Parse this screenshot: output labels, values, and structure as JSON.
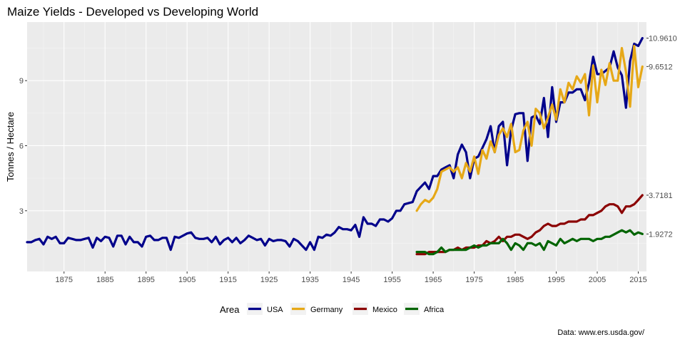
{
  "chart_data": {
    "type": "line",
    "title": "Maize Yields - Developed vs Developing World",
    "xlabel": "",
    "ylabel": "Tonnes / Hectare",
    "caption": "Data: www.ers.usda.gov/",
    "xlim": [
      1866,
      2017
    ],
    "ylim": [
      0.2,
      11.7
    ],
    "x_ticks": [
      "1875",
      "1885",
      "1895",
      "1905",
      "1915",
      "1925",
      "1935",
      "1945",
      "1955",
      "1965",
      "1975",
      "1985",
      "1995",
      "2005",
      "2015"
    ],
    "y_ticks": [
      "3",
      "6",
      "9"
    ],
    "grid": true,
    "legend": {
      "title": "Area",
      "position": "bottom"
    },
    "end_labels": [
      {
        "series": "USA",
        "text": "10.9610",
        "value": 10.961
      },
      {
        "series": "Germany",
        "text": "9.6512",
        "value": 9.6512
      },
      {
        "series": "Mexico",
        "text": "3.7181",
        "value": 3.7181
      },
      {
        "series": "Africa",
        "text": "1.9272",
        "value": 1.9272
      }
    ],
    "series": [
      {
        "name": "USA",
        "color": "#00008b",
        "x": [
          1866,
          1867,
          1868,
          1869,
          1870,
          1871,
          1872,
          1873,
          1874,
          1875,
          1876,
          1877,
          1878,
          1879,
          1880,
          1881,
          1882,
          1883,
          1884,
          1885,
          1886,
          1887,
          1888,
          1889,
          1890,
          1891,
          1892,
          1893,
          1894,
          1895,
          1896,
          1897,
          1898,
          1899,
          1900,
          1901,
          1902,
          1903,
          1904,
          1905,
          1906,
          1907,
          1908,
          1909,
          1910,
          1911,
          1912,
          1913,
          1914,
          1915,
          1916,
          1917,
          1918,
          1919,
          1920,
          1921,
          1922,
          1923,
          1924,
          1925,
          1926,
          1927,
          1928,
          1929,
          1930,
          1931,
          1932,
          1933,
          1934,
          1935,
          1936,
          1937,
          1938,
          1939,
          1940,
          1941,
          1942,
          1943,
          1944,
          1945,
          1946,
          1947,
          1948,
          1949,
          1950,
          1951,
          1952,
          1953,
          1954,
          1955,
          1956,
          1957,
          1958,
          1959,
          1960,
          1961,
          1962,
          1963,
          1964,
          1965,
          1966,
          1967,
          1968,
          1969,
          1970,
          1971,
          1972,
          1973,
          1974,
          1975,
          1976,
          1977,
          1978,
          1979,
          1980,
          1981,
          1982,
          1983,
          1984,
          1985,
          1986,
          1987,
          1988,
          1989,
          1990,
          1991,
          1992,
          1993,
          1994,
          1995,
          1996,
          1997,
          1998,
          1999,
          2000,
          2001,
          2002,
          2003,
          2004,
          2005,
          2006,
          2007,
          2008,
          2009,
          2010,
          2011,
          2012,
          2013,
          2014,
          2015,
          2016
        ],
        "values": [
          1.55,
          1.55,
          1.65,
          1.7,
          1.45,
          1.8,
          1.7,
          1.8,
          1.5,
          1.5,
          1.75,
          1.7,
          1.65,
          1.65,
          1.7,
          1.75,
          1.3,
          1.75,
          1.6,
          1.8,
          1.75,
          1.35,
          1.85,
          1.85,
          1.45,
          1.8,
          1.55,
          1.55,
          1.35,
          1.8,
          1.85,
          1.65,
          1.65,
          1.75,
          1.75,
          1.2,
          1.8,
          1.75,
          1.85,
          1.95,
          2.0,
          1.75,
          1.7,
          1.7,
          1.75,
          1.55,
          1.8,
          1.45,
          1.65,
          1.75,
          1.55,
          1.75,
          1.5,
          1.65,
          1.85,
          1.75,
          1.65,
          1.7,
          1.4,
          1.7,
          1.6,
          1.65,
          1.65,
          1.6,
          1.35,
          1.7,
          1.6,
          1.4,
          1.2,
          1.55,
          1.2,
          1.8,
          1.75,
          1.9,
          1.85,
          2.0,
          2.25,
          2.15,
          2.15,
          2.1,
          2.35,
          1.8,
          2.7,
          2.4,
          2.4,
          2.3,
          2.6,
          2.6,
          2.5,
          2.65,
          3.0,
          3.0,
          3.3,
          3.35,
          3.4,
          3.9,
          4.1,
          4.3,
          4.0,
          4.6,
          4.6,
          4.9,
          5.0,
          5.1,
          4.5,
          5.6,
          6.05,
          5.7,
          4.5,
          5.4,
          5.5,
          5.9,
          6.3,
          6.9,
          5.7,
          6.9,
          7.1,
          5.1,
          6.7,
          7.45,
          7.5,
          7.5,
          5.3,
          7.3,
          7.4,
          7.0,
          8.2,
          6.4,
          8.7,
          7.1,
          8.0,
          8.0,
          8.45,
          8.45,
          8.6,
          8.6,
          8.1,
          8.9,
          10.1,
          9.3,
          9.3,
          9.45,
          9.6,
          10.35,
          9.6,
          9.25,
          7.75,
          9.9,
          10.7,
          10.6,
          10.96
        ]
      },
      {
        "name": "Germany",
        "color": "#e6a817",
        "x": [
          1961,
          1962,
          1963,
          1964,
          1965,
          1966,
          1967,
          1968,
          1969,
          1970,
          1971,
          1972,
          1973,
          1974,
          1975,
          1976,
          1977,
          1978,
          1979,
          1980,
          1981,
          1982,
          1983,
          1984,
          1985,
          1986,
          1987,
          1988,
          1989,
          1990,
          1991,
          1992,
          1993,
          1994,
          1995,
          1996,
          1997,
          1998,
          1999,
          2000,
          2001,
          2002,
          2003,
          2004,
          2005,
          2006,
          2007,
          2008,
          2009,
          2010,
          2011,
          2012,
          2013,
          2014,
          2015,
          2016
        ],
        "values": [
          3.0,
          3.3,
          3.5,
          3.4,
          3.6,
          4.0,
          4.8,
          4.9,
          5.0,
          4.8,
          5.0,
          4.5,
          5.2,
          4.8,
          5.5,
          4.7,
          5.8,
          5.4,
          6.2,
          5.7,
          6.5,
          6.8,
          6.4,
          7.0,
          5.7,
          5.8,
          6.7,
          7.1,
          6.0,
          7.7,
          7.5,
          6.8,
          7.3,
          7.9,
          7.2,
          8.6,
          8.0,
          8.9,
          8.6,
          9.2,
          8.9,
          9.3,
          7.4,
          9.7,
          8.0,
          9.5,
          8.8,
          9.8,
          9.0,
          9.0,
          10.5,
          9.4,
          7.8,
          10.6,
          8.7,
          9.6512
        ]
      },
      {
        "name": "Mexico",
        "color": "#8b0000",
        "x": [
          1961,
          1962,
          1963,
          1964,
          1965,
          1966,
          1967,
          1968,
          1969,
          1970,
          1971,
          1972,
          1973,
          1974,
          1975,
          1976,
          1977,
          1978,
          1979,
          1980,
          1981,
          1982,
          1983,
          1984,
          1985,
          1986,
          1987,
          1988,
          1989,
          1990,
          1991,
          1992,
          1993,
          1994,
          1995,
          1996,
          1997,
          1998,
          1999,
          2000,
          2001,
          2002,
          2003,
          2004,
          2005,
          2006,
          2007,
          2008,
          2009,
          2010,
          2011,
          2012,
          2013,
          2014,
          2015,
          2016
        ],
        "values": [
          1.0,
          1.0,
          1.0,
          1.1,
          1.1,
          1.1,
          1.1,
          1.1,
          1.2,
          1.2,
          1.3,
          1.2,
          1.3,
          1.3,
          1.3,
          1.4,
          1.4,
          1.6,
          1.5,
          1.6,
          1.8,
          1.6,
          1.8,
          1.8,
          1.9,
          1.9,
          1.8,
          1.7,
          1.8,
          2.0,
          2.1,
          2.3,
          2.4,
          2.3,
          2.3,
          2.4,
          2.4,
          2.5,
          2.5,
          2.5,
          2.6,
          2.6,
          2.8,
          2.8,
          2.9,
          3.0,
          3.2,
          3.3,
          3.3,
          3.2,
          2.9,
          3.2,
          3.2,
          3.3,
          3.5,
          3.7181
        ]
      },
      {
        "name": "Africa",
        "color": "#006400",
        "x": [
          1961,
          1962,
          1963,
          1964,
          1965,
          1966,
          1967,
          1968,
          1969,
          1970,
          1971,
          1972,
          1973,
          1974,
          1975,
          1976,
          1977,
          1978,
          1979,
          1980,
          1981,
          1982,
          1983,
          1984,
          1985,
          1986,
          1987,
          1988,
          1989,
          1990,
          1991,
          1992,
          1993,
          1994,
          1995,
          1996,
          1997,
          1998,
          1999,
          2000,
          2001,
          2002,
          2003,
          2004,
          2005,
          2006,
          2007,
          2008,
          2009,
          2010,
          2011,
          2012,
          2013,
          2014,
          2015,
          2016
        ],
        "values": [
          1.1,
          1.1,
          1.1,
          1.0,
          1.0,
          1.1,
          1.3,
          1.1,
          1.2,
          1.2,
          1.2,
          1.2,
          1.2,
          1.3,
          1.4,
          1.3,
          1.4,
          1.4,
          1.5,
          1.5,
          1.5,
          1.7,
          1.5,
          1.2,
          1.5,
          1.4,
          1.2,
          1.5,
          1.5,
          1.4,
          1.5,
          1.2,
          1.6,
          1.5,
          1.4,
          1.7,
          1.5,
          1.6,
          1.7,
          1.6,
          1.7,
          1.7,
          1.7,
          1.6,
          1.7,
          1.7,
          1.8,
          1.8,
          1.9,
          2.0,
          2.1,
          2.0,
          2.1,
          1.9,
          2.0,
          1.9272
        ]
      }
    ]
  }
}
